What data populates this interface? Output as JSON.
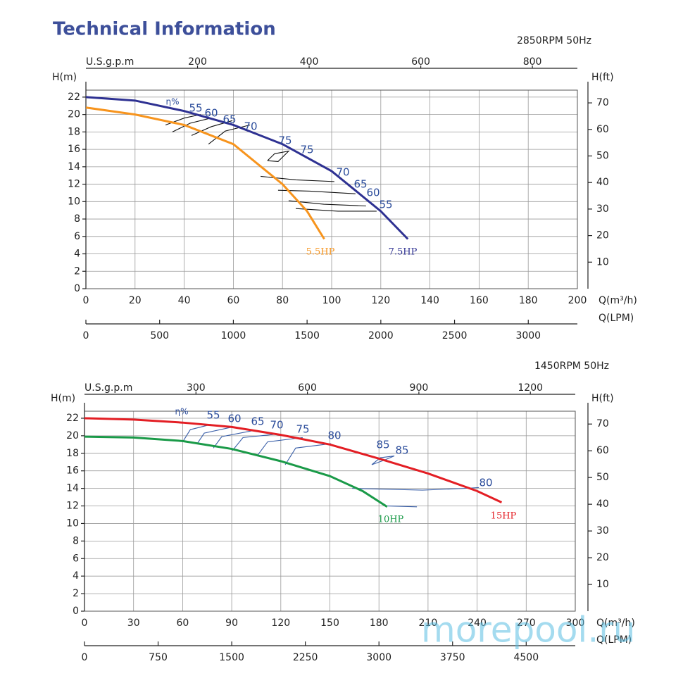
{
  "title": "Technical Information",
  "watermark": "morepool.ru",
  "chart_data": [
    {
      "type": "line",
      "subtitle": "2850RPM  50Hz",
      "x_label": "Q(m³/h)",
      "y_label": "H(m)",
      "y2_label": "H(ft)",
      "x2_label": "U.S.g.p.m",
      "x3_label": "Q(LPM)",
      "xlim": [
        0,
        200
      ],
      "xticks": [
        0,
        20,
        40,
        60,
        80,
        100,
        120,
        140,
        160,
        180,
        200
      ],
      "ylim": [
        0,
        22.8
      ],
      "yticks": [
        0,
        2,
        4,
        6,
        8,
        10,
        12,
        14,
        16,
        18,
        20,
        22
      ],
      "y2lim": [
        0,
        74.8
      ],
      "y2ticks": [
        10,
        20,
        30,
        40,
        50,
        60,
        70
      ],
      "x2lim": [
        0,
        880.6
      ],
      "x2ticks": [
        200,
        400,
        600,
        800
      ],
      "x3lim": [
        0,
        3333
      ],
      "x3ticks": [
        0,
        500,
        1000,
        1500,
        2000,
        2500,
        3000
      ],
      "grid": true,
      "series": [
        {
          "name": "5.5HP",
          "color": "#f7941d",
          "x": [
            0,
            20,
            40,
            60,
            80,
            90,
            97
          ],
          "values": [
            20.8,
            20.0,
            18.8,
            16.6,
            12.0,
            8.9,
            5.7
          ]
        },
        {
          "name": "7.5HP",
          "color": "#2e3192",
          "x": [
            0,
            20,
            40,
            60,
            80,
            100,
            110,
            120,
            131
          ],
          "values": [
            22.0,
            21.6,
            20.4,
            18.8,
            16.6,
            13.5,
            11.2,
            8.9,
            5.7
          ]
        }
      ],
      "efficiency_color": "#111111",
      "efficiency_lines": [
        {
          "x": [
            32.4,
            40.1,
            46.7
          ],
          "values": [
            18.8,
            19.6,
            20.0
          ]
        },
        {
          "x": [
            35.2,
            42.4,
            51.0
          ],
          "values": [
            18.0,
            19.0,
            19.6
          ]
        },
        {
          "x": [
            43.0,
            51.0,
            59.6
          ],
          "values": [
            17.6,
            18.6,
            19.3
          ]
        },
        {
          "x": [
            49.9,
            56.7,
            66.8
          ],
          "values": [
            16.6,
            18.1,
            18.8
          ]
        },
        {
          "x": [
            73.9,
            76.8,
            82.5,
            78.2,
            73.9
          ],
          "values": [
            14.7,
            15.5,
            15.8,
            14.6,
            14.7
          ]
        },
        {
          "x": [
            71.1,
            85.4,
            101.1
          ],
          "values": [
            12.9,
            12.5,
            12.3
          ]
        },
        {
          "x": [
            78.2,
            91.1,
            109.7
          ],
          "values": [
            11.3,
            11.2,
            10.9
          ]
        },
        {
          "x": [
            82.5,
            96.8,
            114.0
          ],
          "values": [
            10.1,
            9.7,
            9.5
          ]
        },
        {
          "x": [
            85.4,
            102.6,
            118.3
          ],
          "values": [
            9.2,
            8.9,
            8.9
          ]
        }
      ],
      "efficiency_label_color": "#2b4c9b",
      "efficiency_labels": [
        "η%",
        "55",
        "60",
        "65",
        "70",
        "75",
        "75",
        "70",
        "65",
        "60",
        "55"
      ]
    },
    {
      "type": "line",
      "subtitle": "1450RPM  50Hz",
      "x_label": "Q(m³/h)",
      "y_label": "H(m)",
      "y2_label": "H(ft)",
      "x2_label": "U.S.g.p.m",
      "x3_label": "Q(LPM)",
      "xlim": [
        0,
        300
      ],
      "xticks": [
        0,
        30,
        60,
        90,
        120,
        150,
        180,
        210,
        240,
        270,
        300
      ],
      "ylim": [
        0,
        22.8
      ],
      "yticks": [
        0,
        2,
        4,
        6,
        8,
        10,
        12,
        14,
        16,
        18,
        20,
        22
      ],
      "y2lim": [
        0,
        74.8
      ],
      "y2ticks": [
        10,
        20,
        30,
        40,
        50,
        60,
        70
      ],
      "x2lim": [
        0,
        1320.9
      ],
      "x2ticks": [
        300,
        600,
        900,
        1200
      ],
      "x3lim": [
        0,
        5000
      ],
      "x3ticks": [
        0,
        750,
        1500,
        2250,
        3000,
        3750,
        4500
      ],
      "grid": true,
      "series": [
        {
          "name": "10HP",
          "color": "#1a9a48",
          "x": [
            0,
            30,
            60,
            90,
            120,
            150,
            170,
            185
          ],
          "values": [
            19.9,
            19.8,
            19.4,
            18.5,
            17.1,
            15.4,
            13.7,
            11.9
          ]
        },
        {
          "name": "15HP",
          "color": "#e31e24",
          "x": [
            0,
            30,
            60,
            90,
            120,
            150,
            180,
            210,
            240,
            255
          ],
          "values": [
            22.0,
            21.85,
            21.5,
            21.0,
            20.1,
            19.0,
            17.4,
            15.7,
            13.7,
            12.4
          ]
        }
      ],
      "efficiency_color": "#3a5fa8",
      "efficiency_lines": [
        {
          "x": [
            60,
            64.7,
            77.5
          ],
          "values": [
            19.3,
            20.7,
            21.3
          ]
        },
        {
          "x": [
            68.9,
            73.2,
            90.4
          ],
          "values": [
            19.1,
            20.3,
            21.0
          ]
        },
        {
          "x": [
            78.8,
            83.9,
            103.3
          ],
          "values": [
            18.6,
            19.9,
            20.6
          ]
        },
        {
          "x": [
            90.4,
            96.9,
            118.4
          ],
          "values": [
            18.3,
            19.8,
            20.2
          ]
        },
        {
          "x": [
            105.5,
            111.9,
            133.4
          ],
          "values": [
            17.7,
            19.3,
            19.8
          ]
        },
        {
          "x": [
            122.7,
            129.1,
            150.7
          ],
          "values": [
            16.7,
            18.6,
            19.1
          ]
        },
        {
          "x": [
            175.6,
            180.8,
            189.4,
            183.0,
            175.6
          ],
          "values": [
            16.7,
            17.5,
            17.7,
            17.2,
            16.7
          ]
        },
        {
          "x": [
            163.6,
            206.6,
            232.5,
            241.1
          ],
          "values": [
            14.0,
            13.8,
            14.0,
            14.1
          ]
        },
        {
          "x": [
            185.1,
            203.2
          ],
          "values": [
            12.0,
            11.9
          ]
        }
      ],
      "efficiency_label_color": "#2b4c9b",
      "efficiency_labels": [
        "η%",
        "55",
        "60",
        "65",
        "70",
        "75",
        "80",
        "85",
        "85",
        "80"
      ]
    }
  ]
}
